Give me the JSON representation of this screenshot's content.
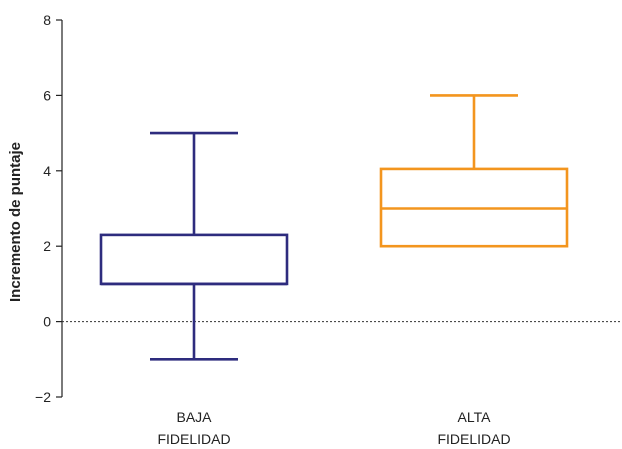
{
  "chart_data": {
    "type": "boxplot",
    "ylabel": "Incremento de puntaje",
    "xlabel": "",
    "ylim": [
      -2,
      8
    ],
    "yticks": [
      -2,
      0,
      2,
      4,
      6,
      8
    ],
    "ytick_labels": [
      "−2",
      "0",
      "2",
      "4",
      "6",
      "8"
    ],
    "reference_line": {
      "y": 0,
      "style": "dotted"
    },
    "grid": false,
    "categories": [
      {
        "label_lines": [
          "BAJA",
          "FIDELIDAD"
        ],
        "min": -1,
        "q1": 1,
        "median": 1,
        "q3": 2.3,
        "max": 5,
        "color": "#2e2c7e"
      },
      {
        "label_lines": [
          "ALTA",
          "FIDELIDAD"
        ],
        "min": 2,
        "q1": 2,
        "median": 3,
        "q3": 4.05,
        "max": 6,
        "color": "#f3951e"
      }
    ]
  }
}
